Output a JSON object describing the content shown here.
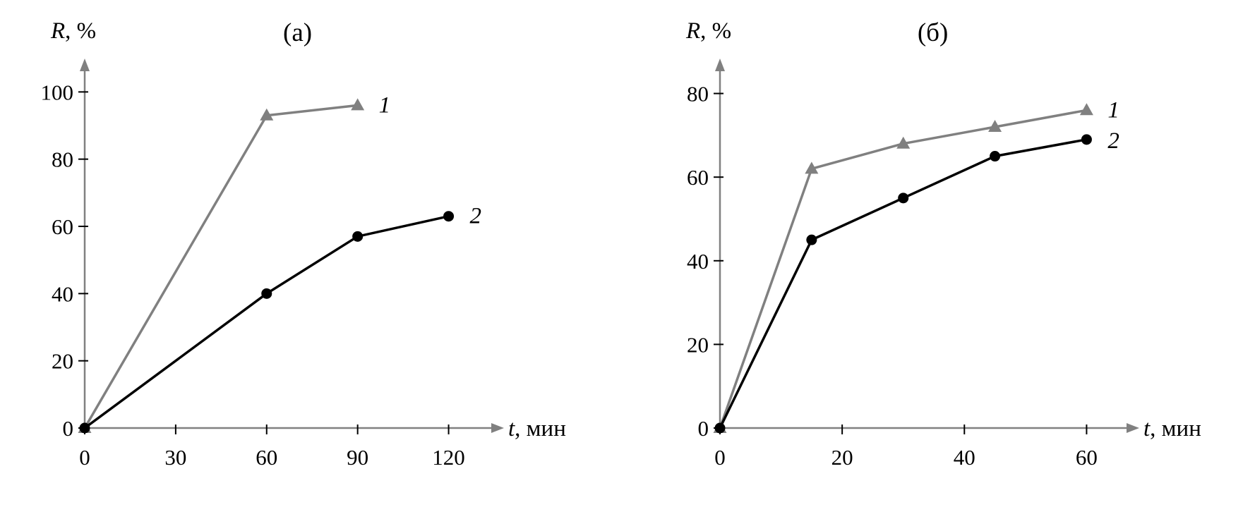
{
  "figure": {
    "background": "#ffffff"
  },
  "chart_data": [
    {
      "type": "line",
      "title": "(а)",
      "ylabel": {
        "symbol": "R",
        "suffix": ", %"
      },
      "xlabel": {
        "symbol": "t",
        "suffix": ", мин"
      },
      "xticks": [
        0,
        30,
        60,
        90,
        120
      ],
      "yticks": [
        0,
        20,
        40,
        60,
        80,
        100
      ],
      "xlim": [
        0,
        135
      ],
      "ylim": [
        0,
        107
      ],
      "grid": false,
      "axis_color": "#808080",
      "tick_color": "#000000",
      "series": [
        {
          "name": "1",
          "marker": "triangle",
          "color": "#808080",
          "x": [
            0,
            60,
            90
          ],
          "y": [
            0,
            93,
            96
          ],
          "label_dx": 30,
          "label_dy": 10
        },
        {
          "name": "2",
          "marker": "circle",
          "color": "#000000",
          "x": [
            0,
            60,
            90,
            120
          ],
          "y": [
            0,
            40,
            57,
            63
          ],
          "label_dx": 30,
          "label_dy": 10
        }
      ]
    },
    {
      "type": "line",
      "title": "(б)",
      "ylabel": {
        "symbol": "R",
        "suffix": ", %"
      },
      "xlabel": {
        "symbol": "t",
        "suffix": ", мин"
      },
      "xticks": [
        0,
        20,
        40,
        60
      ],
      "yticks": [
        0,
        20,
        40,
        60,
        80
      ],
      "xlim": [
        0,
        67
      ],
      "ylim": [
        0,
        86
      ],
      "grid": false,
      "axis_color": "#808080",
      "tick_color": "#000000",
      "series": [
        {
          "name": "1",
          "marker": "triangle",
          "color": "#808080",
          "x": [
            0,
            15,
            30,
            45,
            60
          ],
          "y": [
            0,
            62,
            68,
            72,
            76
          ],
          "label_dx": 30,
          "label_dy": 10
        },
        {
          "name": "2",
          "marker": "circle",
          "color": "#000000",
          "x": [
            0,
            15,
            30,
            45,
            60
          ],
          "y": [
            0,
            45,
            55,
            65,
            69
          ],
          "label_dx": 30,
          "label_dy": 12
        }
      ]
    }
  ]
}
